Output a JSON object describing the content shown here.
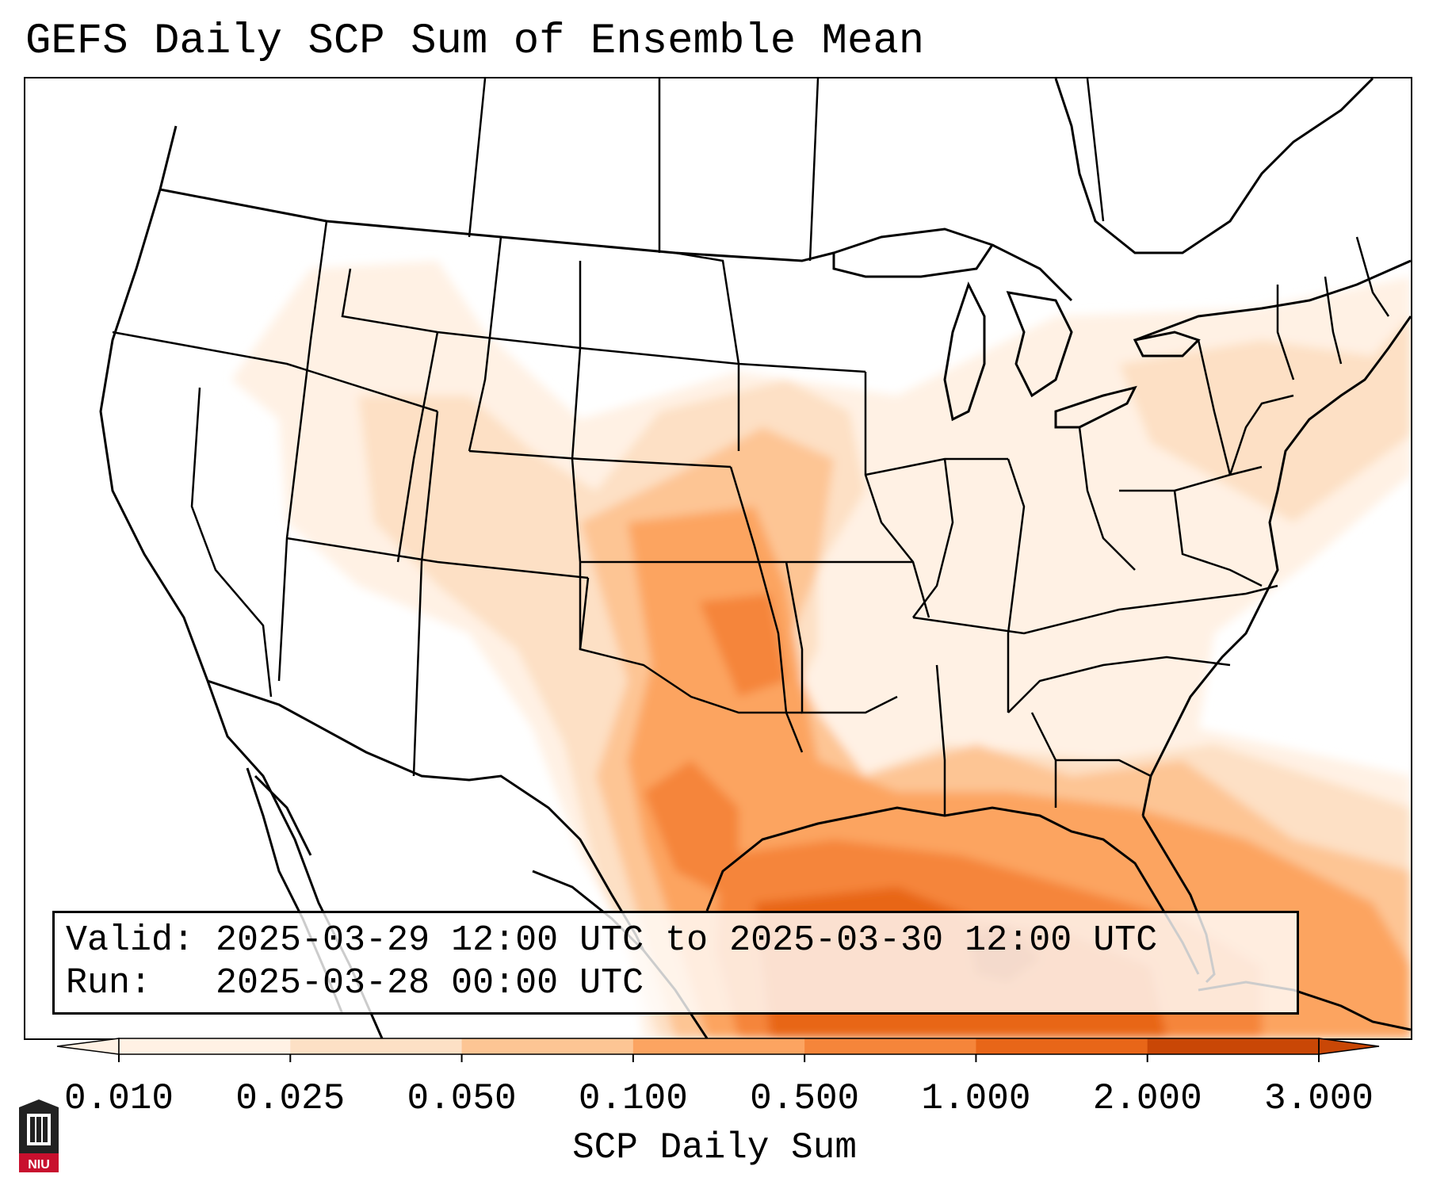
{
  "title": "GEFS Daily SCP Sum of Ensemble Mean",
  "info": {
    "valid": "Valid: 2025-03-29 12:00 UTC to 2025-03-30 12:00 UTC",
    "run": "Run:   2025-03-28 00:00 UTC"
  },
  "colorbar": {
    "label": "SCP Daily Sum",
    "ticks": [
      "0.010",
      "0.025",
      "0.050",
      "0.100",
      "0.500",
      "1.000",
      "2.000",
      "3.000"
    ],
    "colors": [
      "#fff1e4",
      "#fde0c5",
      "#fdc594",
      "#fca461",
      "#f5853a",
      "#e86618",
      "#c94706"
    ],
    "extend": "both"
  },
  "logo_text": "NIU"
}
